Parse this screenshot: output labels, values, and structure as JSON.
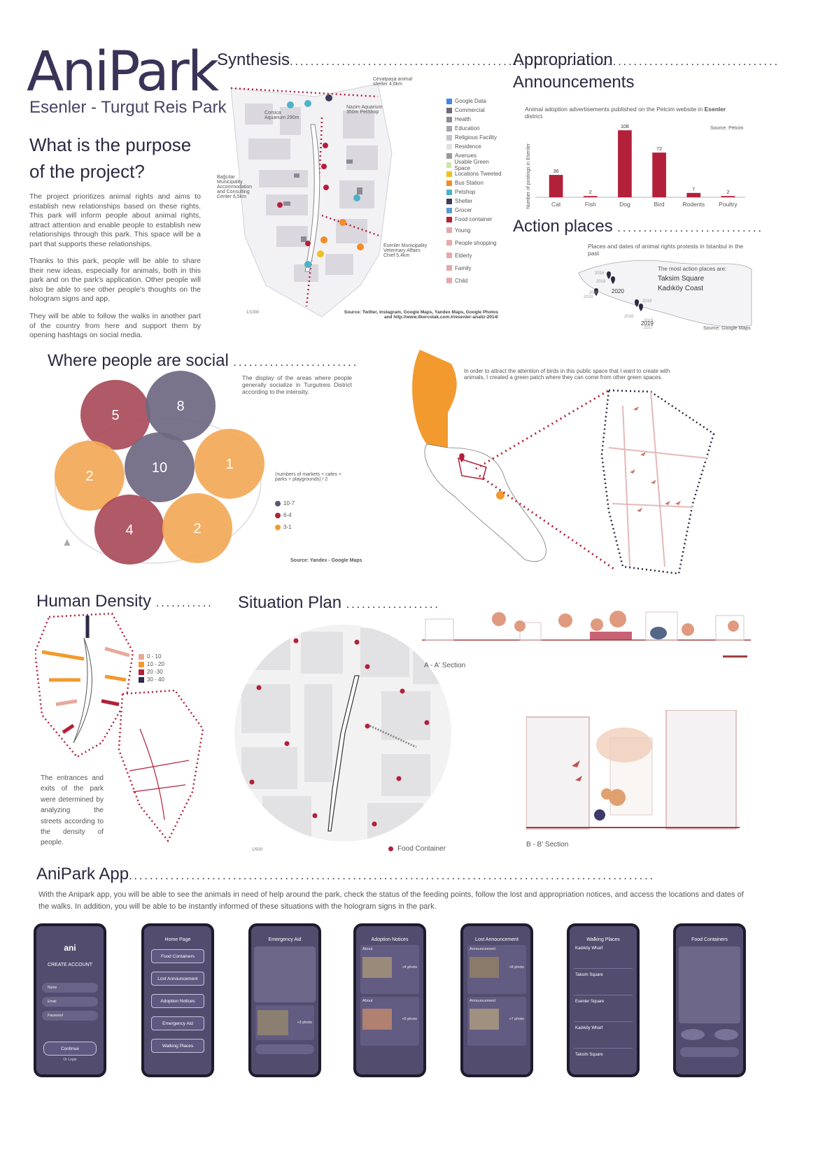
{
  "header": {
    "title": "AniPark",
    "subtitle": "Esenler - Turgut Reis Park",
    "purpose_heading_1": "What is the purpose",
    "purpose_heading_2": "of the project?",
    "paragraphs": [
      "The project prioritizes animal rights and aims to establish new relationships based on these rights. This park will inform people about animal rights, attract attention and enable people to establish new relationships through this park. This space will be a part that supports these relationships.",
      "Thanks to this park, people will be able to share their new ideas, especially for animals, both in this park and on the park's application. Other people will also be able to see other people's thoughts on the hologram signs and app.",
      "They will be able to follow the walks in another part of the country from here and support them by opening hashtags on social media."
    ]
  },
  "synthesis": {
    "title": "Synthesis",
    "labels": {
      "cevatpasa": "Cevatpaşa animal shelter 4,6km",
      "corsica": "Corsica Aquarium 290m",
      "nazim": "Nazim Aquarium 350m PetShop",
      "bagcilar": "Bağcılar Municipality Accommodation and Consulting Center 6,5km",
      "esenler_vet": "Esenler Municipality Veterinary Affairs Chief 5,4km"
    },
    "scale": "1/1000",
    "source": "Source: Twitter, Instagram, Google Maps, Yandex Maps, Google Photos and http://www.ilkercolak.com.tr/esenler-analiz-2014/",
    "legend": [
      {
        "label": "Google Data",
        "color": "#4285f4"
      },
      {
        "label": "Commercial",
        "color": "#6d6a7a"
      },
      {
        "label": "Health",
        "color": "#8c8896"
      },
      {
        "label": "Education",
        "color": "#a8a4b0"
      },
      {
        "label": "Religious Facility",
        "color": "#c6c2cc"
      },
      {
        "label": "Residence",
        "color": "#e2e0e6"
      },
      {
        "label": "Avenues",
        "color": "#999999"
      },
      {
        "label": "Usable Green Space",
        "color": "#cde3a8"
      },
      {
        "label": "Locations Tweeted",
        "color": "#f0c020"
      },
      {
        "label": "Bus Station",
        "color": "#f28c28"
      },
      {
        "label": "Petshop",
        "color": "#4bb3c8"
      },
      {
        "label": "Shelter",
        "color": "#3d3a5c"
      },
      {
        "label": "Grocer",
        "color": "#5a9bd0"
      },
      {
        "label": "Food container",
        "color": "#b3203a"
      },
      {
        "label": "Young",
        "color": "#e7a8a8"
      },
      {
        "label": "People shopping",
        "color": "#e7a8a8"
      },
      {
        "label": "Elderly",
        "color": "#e7a8a8"
      },
      {
        "label": "Family",
        "color": "#e7a8a8"
      },
      {
        "label": "Child",
        "color": "#e7a8a8"
      }
    ]
  },
  "appropriation": {
    "title_1": "Appropriation",
    "title_2": "Announcements",
    "caption_prefix": "Animal adoption advertisements published on the Petcim website in",
    "caption_bold": "Esenler",
    "caption_suffix": "district.",
    "source": "Source: Petcim",
    "chart_data": {
      "type": "bar",
      "categories": [
        "Cat",
        "Fish",
        "Dog",
        "Bird",
        "Rodents",
        "Poultry"
      ],
      "values": [
        36,
        2,
        108,
        72,
        7,
        2
      ],
      "ylabel": "Number of postings in Esenler",
      "ylim": [
        0,
        115
      ],
      "bar_color": "#b3203a"
    }
  },
  "action_places": {
    "title": "Action places",
    "caption": "Places and dates of animal rights protests in Istanbul in the past",
    "most_label": "The most action places are:",
    "places": [
      "Taksim Square",
      "Kadıköy Coast"
    ],
    "years": [
      "2016",
      "2019",
      "2020",
      "2020",
      "2019",
      "2019",
      "2016",
      "2019",
      "2019",
      "2017"
    ],
    "source": "Source: Google Maps"
  },
  "social": {
    "title": "Where people are social",
    "caption": "The display of the areas where people generally socialize in Turgutreis District according to the intensity.",
    "formula": "(numbers of markets + cafes + parks + playgrounds) / 2",
    "circles": [
      {
        "value": "5",
        "color": "#a94b5a"
      },
      {
        "value": "8",
        "color": "#6e6882"
      },
      {
        "value": "2",
        "color": "#f2a957"
      },
      {
        "value": "10",
        "color": "#6e6882"
      },
      {
        "value": "1",
        "color": "#f2a957"
      },
      {
        "value": "4",
        "color": "#a94b5a"
      },
      {
        "value": "2",
        "color": "#f2a957"
      }
    ],
    "legend": [
      {
        "label": "10-7",
        "color": "#5a5470"
      },
      {
        "label": "6-4",
        "color": "#a5283e"
      },
      {
        "label": "3-1",
        "color": "#f29a2e"
      }
    ],
    "source": "Source: Yandex - Google Maps"
  },
  "birds": {
    "caption": "In order to attract the attention of birds in this public space that I want to create with animals, I created a green patch where they can come from other green spaces."
  },
  "density": {
    "title": "Human Density",
    "legend": [
      {
        "label": "0 - 10",
        "color": "#e8a89a"
      },
      {
        "label": "10 - 20",
        "color": "#f29a2e"
      },
      {
        "label": "20 -30",
        "color": "#b3203a"
      },
      {
        "label": "30 - 40",
        "color": "#2e2a4a"
      }
    ],
    "caption": "The entrances and exits of the park were determined by analyzing the streets according to the density of people."
  },
  "situation": {
    "title": "Situation Plan",
    "scale": "1/500",
    "food_label": "Food Container",
    "section_aa": "A - A' Section",
    "section_bb": "B - B' Section"
  },
  "app": {
    "title": "AniPark App",
    "description": "With the Anipark app, you will be able to see the animals in need of help around the park, check the status of the feeding points, follow the lost and appropriation notices, and access the locations and dates of the walks. In addition, you will be able to be instantly informed of these situations with the hologram signs in the park.",
    "screens": {
      "login": {
        "logo": "ani",
        "title": "CREATE ACCOUNT",
        "fields": [
          "Name",
          "Email",
          "Password"
        ],
        "button": "Continue",
        "link": "Or Login"
      },
      "home": {
        "title": "Home Page",
        "buttons": [
          "Food Containers",
          "Lost Announcement",
          "Adoption Notices",
          "Emergency Aid",
          "Walking Places"
        ]
      },
      "emergency": {
        "title": "Emergency Aid",
        "photo": "+3 photo"
      },
      "adoption": {
        "title": "Adoption Notices",
        "items": [
          "About",
          "About"
        ],
        "photos": [
          "+4 photo",
          "+5 photo"
        ]
      },
      "lost": {
        "title": "Lost Announcement",
        "items": [
          "Announcement",
          "Announcement"
        ],
        "photos": [
          "+8 photo",
          "+7 photo"
        ]
      },
      "walking": {
        "title": "Walking Places",
        "items": [
          "Kadıköy Wharf",
          "Taksim Square",
          "Esenler Square",
          "Kadıköy Wharf",
          "Taksim Square"
        ]
      },
      "food": {
        "title": "Food Containers"
      }
    }
  }
}
